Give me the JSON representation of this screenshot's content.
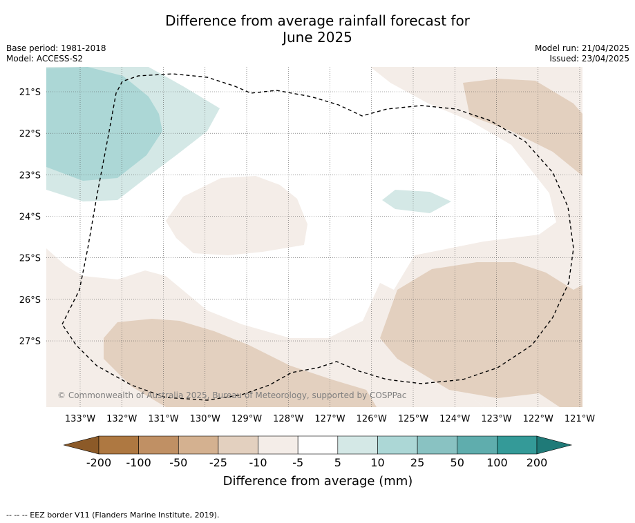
{
  "header": {
    "title_line1": "Difference from average rainfall forecast for",
    "title_line2": "June 2025",
    "base_period": "Base period: 1981-2018",
    "model": "Model: ACCESS-S2",
    "model_run": "Model run: 21/04/2025",
    "issued": "Issued: 23/04/2025"
  },
  "map": {
    "latitude_labels": [
      "21°S",
      "22°S",
      "23°S",
      "24°S",
      "25°S",
      "26°S",
      "27°S"
    ],
    "latitudes": [
      21,
      22,
      23,
      24,
      25,
      26,
      27
    ],
    "longitude_labels": [
      "133°W",
      "132°W",
      "131°W",
      "130°W",
      "129°W",
      "128°W",
      "127°W",
      "126°W",
      "125°W",
      "124°W",
      "123°W",
      "122°W",
      "121°W"
    ],
    "longitudes": [
      133,
      132,
      131,
      130,
      129,
      128,
      127,
      126,
      125,
      124,
      123,
      122,
      121
    ],
    "copyright": "© Commonwealth of Australia 2025, Bureau of Meteorology, supported by COSPPac",
    "anomaly_classes": {
      "dry_-10_-5": "#f4ede8",
      "dry_-25_-10": "#e3d0bf",
      "wet_5_10": "#d4e8e6",
      "wet_10_25": "#acd7d6"
    }
  },
  "colorbar": {
    "tick_labels": [
      "-200",
      "-100",
      "-50",
      "-25",
      "-10",
      "-5",
      "5",
      "10",
      "25",
      "50",
      "100",
      "200"
    ],
    "colors": [
      "#ae7841",
      "#c09064",
      "#d4b190",
      "#e3d0bf",
      "#f4ede8",
      "#ffffff",
      "#d4e8e6",
      "#acd7d6",
      "#89c2c2",
      "#5fadad",
      "#349a98"
    ],
    "extend_low_color": "#8c5a28",
    "extend_high_color": "#1f7a78",
    "label": "Difference from average (mm)"
  },
  "footer": {
    "eez_note": "--  --  -- EEZ border V11 (Flanders Marine Institute, 2019)."
  }
}
